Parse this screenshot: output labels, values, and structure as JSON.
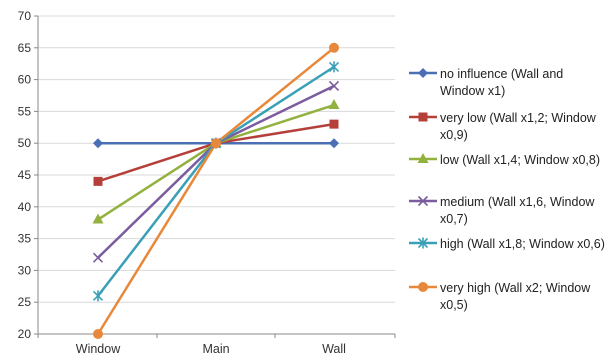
{
  "chart_data": {
    "type": "line",
    "categories": [
      "Window",
      "Main",
      "Wall"
    ],
    "ylim": [
      20,
      70
    ],
    "yticks": [
      20,
      25,
      30,
      35,
      40,
      45,
      50,
      55,
      60,
      65,
      70
    ],
    "grid": true,
    "legend_position": "right",
    "series": [
      {
        "name": "no influence (Wall and Window x1)",
        "values": [
          50,
          50,
          50
        ],
        "color": "#4a6fb5",
        "marker": "diamond"
      },
      {
        "name": "very low (Wall x1,2; Window x0,9)",
        "values": [
          44,
          50,
          53
        ],
        "color": "#b5403a",
        "marker": "square"
      },
      {
        "name": "low (Wall x1,4; Window x0,8)",
        "values": [
          38,
          50,
          56
        ],
        "color": "#93b13f",
        "marker": "triangle"
      },
      {
        "name": "medium (Wall x1,6, Window x0,7)",
        "values": [
          32,
          50,
          59
        ],
        "color": "#7b5c9e",
        "marker": "x"
      },
      {
        "name": "high (Wall x1,8; Window x0,6)",
        "values": [
          26,
          50,
          62
        ],
        "color": "#3aa0b8",
        "marker": "star"
      },
      {
        "name": "very high (Wall x2; Window x0,5)",
        "values": [
          20,
          50,
          65
        ],
        "color": "#e8883a",
        "marker": "circle"
      }
    ]
  }
}
